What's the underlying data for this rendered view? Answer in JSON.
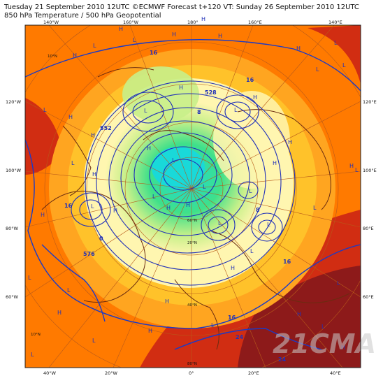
{
  "header": {
    "line1": "Tuesday 21 September 2010 12UTC ©ECMWF Forecast t+120 VT: Sunday 26 September 2010 12UTC",
    "line2": "850 hPa Temperature / 500 hPa Geopotential"
  },
  "lon_labels_top": [
    "140°W",
    "160°W",
    "180°",
    "160°E",
    "140°E"
  ],
  "lon_labels_bottom": [
    "40°W",
    "20°W",
    "0°",
    "20°E",
    "40°E"
  ],
  "lon_labels_left": [
    "120°W",
    "100°W",
    "80°W",
    "60°W"
  ],
  "lon_labels_right": [
    "120°E",
    "100°E",
    "80°E",
    "60°E"
  ],
  "lat_labels": [
    "10°N",
    "20°N",
    "40°N",
    "60°N",
    "80°N"
  ],
  "pressure_labels": [
    "H",
    "L"
  ],
  "contour_values": [
    "16",
    "24",
    "8",
    "0",
    "576",
    "552",
    "528"
  ],
  "watermark": "21CMA",
  "colors": {
    "warm": "#ff7a00",
    "hot": "#d12d12",
    "very_hot": "#8d1a1a",
    "mild": "#ffc22a",
    "cool": "#fff6b0",
    "light_green": "#c8f08a",
    "green": "#3fe08a",
    "cyan": "#19d9d9",
    "contour_blue": "#2030b8",
    "coast_brown": "#6b2c10"
  }
}
